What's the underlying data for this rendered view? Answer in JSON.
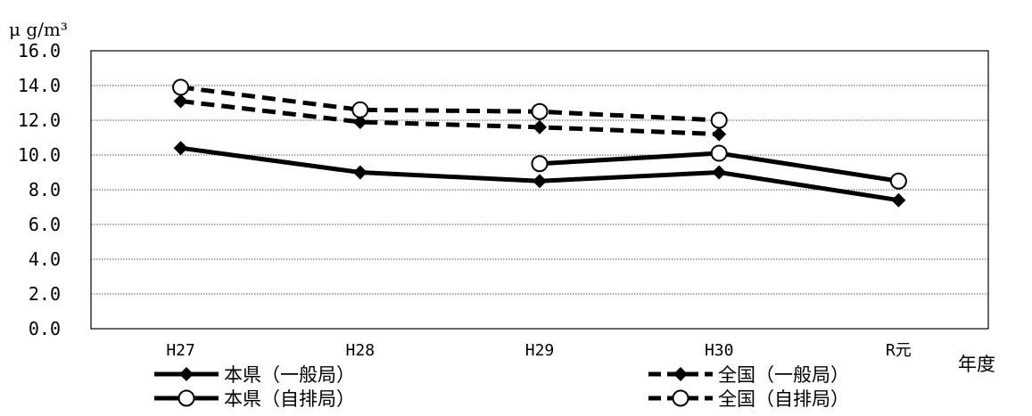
{
  "chart_data": {
    "type": "line",
    "ylabel": "μ g/m³",
    "xlabel": "年度",
    "ylim": [
      0,
      16
    ],
    "yticks": [
      "0.0",
      "2.0",
      "4.0",
      "6.0",
      "8.0",
      "10.0",
      "12.0",
      "14.0",
      "16.0"
    ],
    "categories": [
      "H27",
      "H28",
      "H29",
      "H30",
      "R元"
    ],
    "grid": true,
    "legend_position": "bottom",
    "series": [
      {
        "name": "本県（一般局）",
        "values": [
          10.4,
          9.0,
          8.5,
          9.0,
          7.4
        ],
        "marker": "diamond",
        "dash": "solid",
        "color": "#000000"
      },
      {
        "name": "本県（自排局）",
        "values": [
          null,
          null,
          9.5,
          10.1,
          8.5
        ],
        "marker": "circle",
        "dash": "solid",
        "color": "#000000"
      },
      {
        "name": "全国（一般局）",
        "values": [
          13.1,
          11.9,
          11.6,
          11.2,
          null
        ],
        "marker": "diamond",
        "dash": "dashed",
        "color": "#000000"
      },
      {
        "name": "全国（自排局）",
        "values": [
          13.9,
          12.6,
          12.5,
          12.0,
          null
        ],
        "marker": "circle",
        "dash": "dashed",
        "color": "#000000"
      }
    ]
  }
}
